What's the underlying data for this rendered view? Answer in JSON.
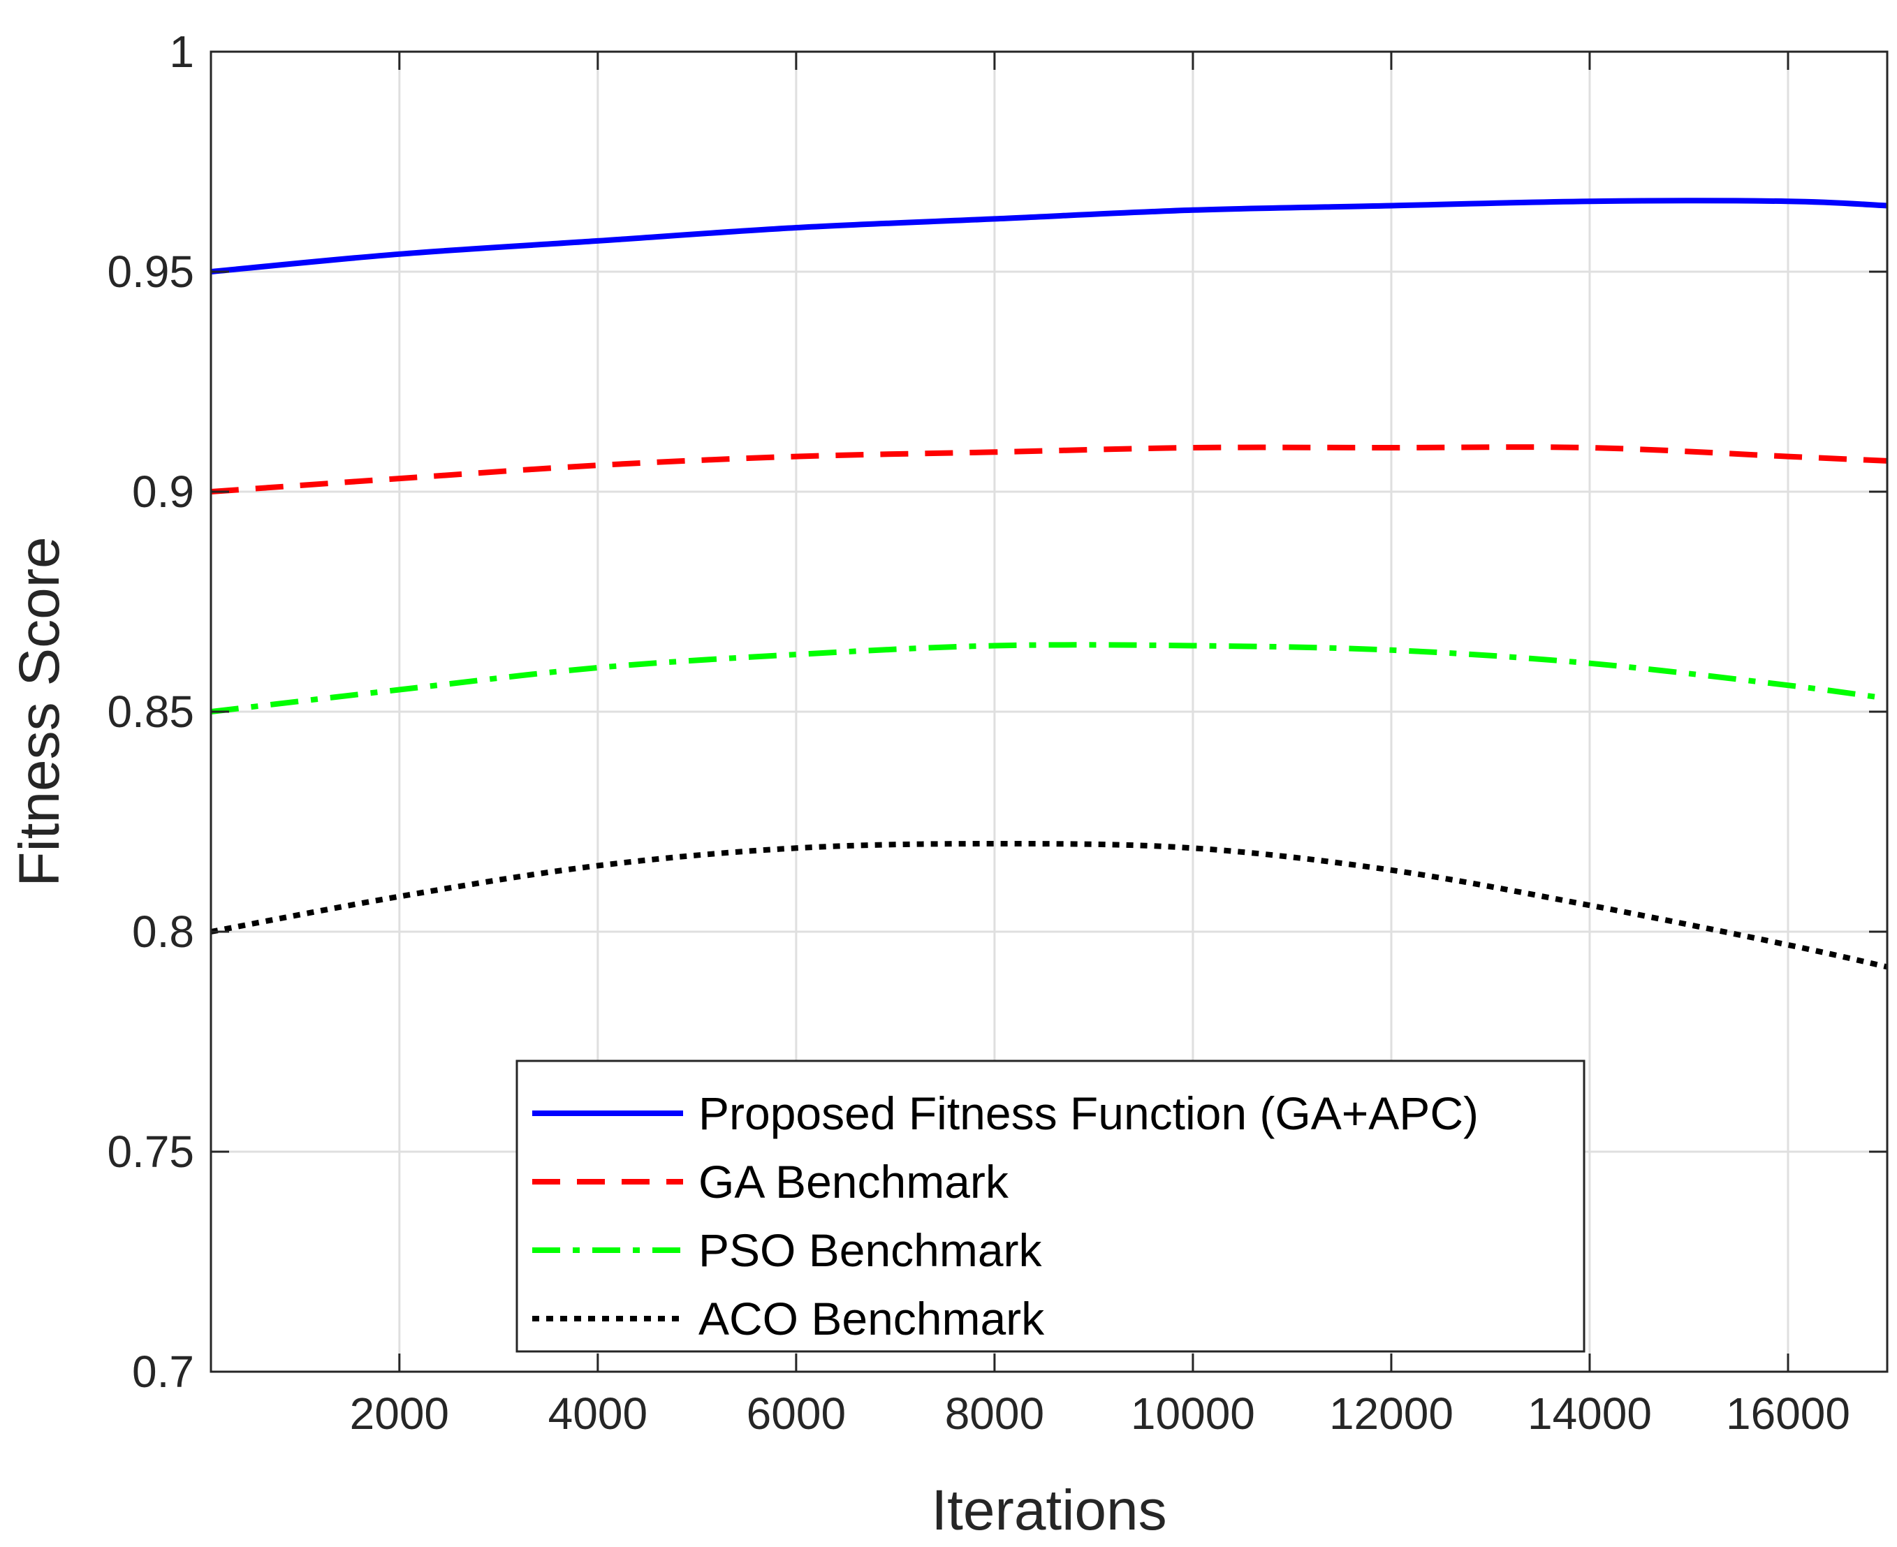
{
  "chart_data": {
    "type": "line",
    "title": "",
    "xlabel": "Iterations",
    "ylabel": "Fitness Score",
    "xlim": [
      100,
      17000
    ],
    "ylim": [
      0.7,
      1.0
    ],
    "xticks": [
      2000,
      4000,
      6000,
      8000,
      10000,
      12000,
      14000,
      16000
    ],
    "xtick_labels": [
      "2000",
      "4000",
      "6000",
      "8000",
      "10000",
      "12000",
      "14000",
      "16000"
    ],
    "yticks": [
      0.7,
      0.75,
      0.8,
      0.85,
      0.9,
      0.95,
      1.0
    ],
    "ytick_labels": [
      "0.7",
      "0.75",
      "0.8",
      "0.85",
      "0.9",
      "0.95",
      "1"
    ],
    "grid": true,
    "legend_position": "bottom-center",
    "x": [
      100,
      2000,
      4000,
      6000,
      8000,
      10000,
      12000,
      14000,
      16000,
      17000
    ],
    "series": [
      {
        "name": "Proposed Fitness Function (GA+APC)",
        "color": "#0000ff",
        "dash": "solid",
        "values": [
          0.95,
          0.954,
          0.957,
          0.96,
          0.962,
          0.964,
          0.965,
          0.966,
          0.966,
          0.965
        ]
      },
      {
        "name": "GA Benchmark",
        "color": "#ff0000",
        "dash": "dashed",
        "values": [
          0.9,
          0.903,
          0.906,
          0.908,
          0.909,
          0.91,
          0.91,
          0.91,
          0.908,
          0.907
        ]
      },
      {
        "name": "PSO Benchmark",
        "color": "#00ff00",
        "dash": "dash-dot",
        "values": [
          0.85,
          0.855,
          0.86,
          0.863,
          0.865,
          0.865,
          0.864,
          0.861,
          0.856,
          0.853
        ]
      },
      {
        "name": "ACO Benchmark",
        "color": "#000000",
        "dash": "dotted",
        "values": [
          0.8,
          0.808,
          0.815,
          0.819,
          0.82,
          0.819,
          0.814,
          0.806,
          0.797,
          0.792
        ]
      }
    ]
  }
}
